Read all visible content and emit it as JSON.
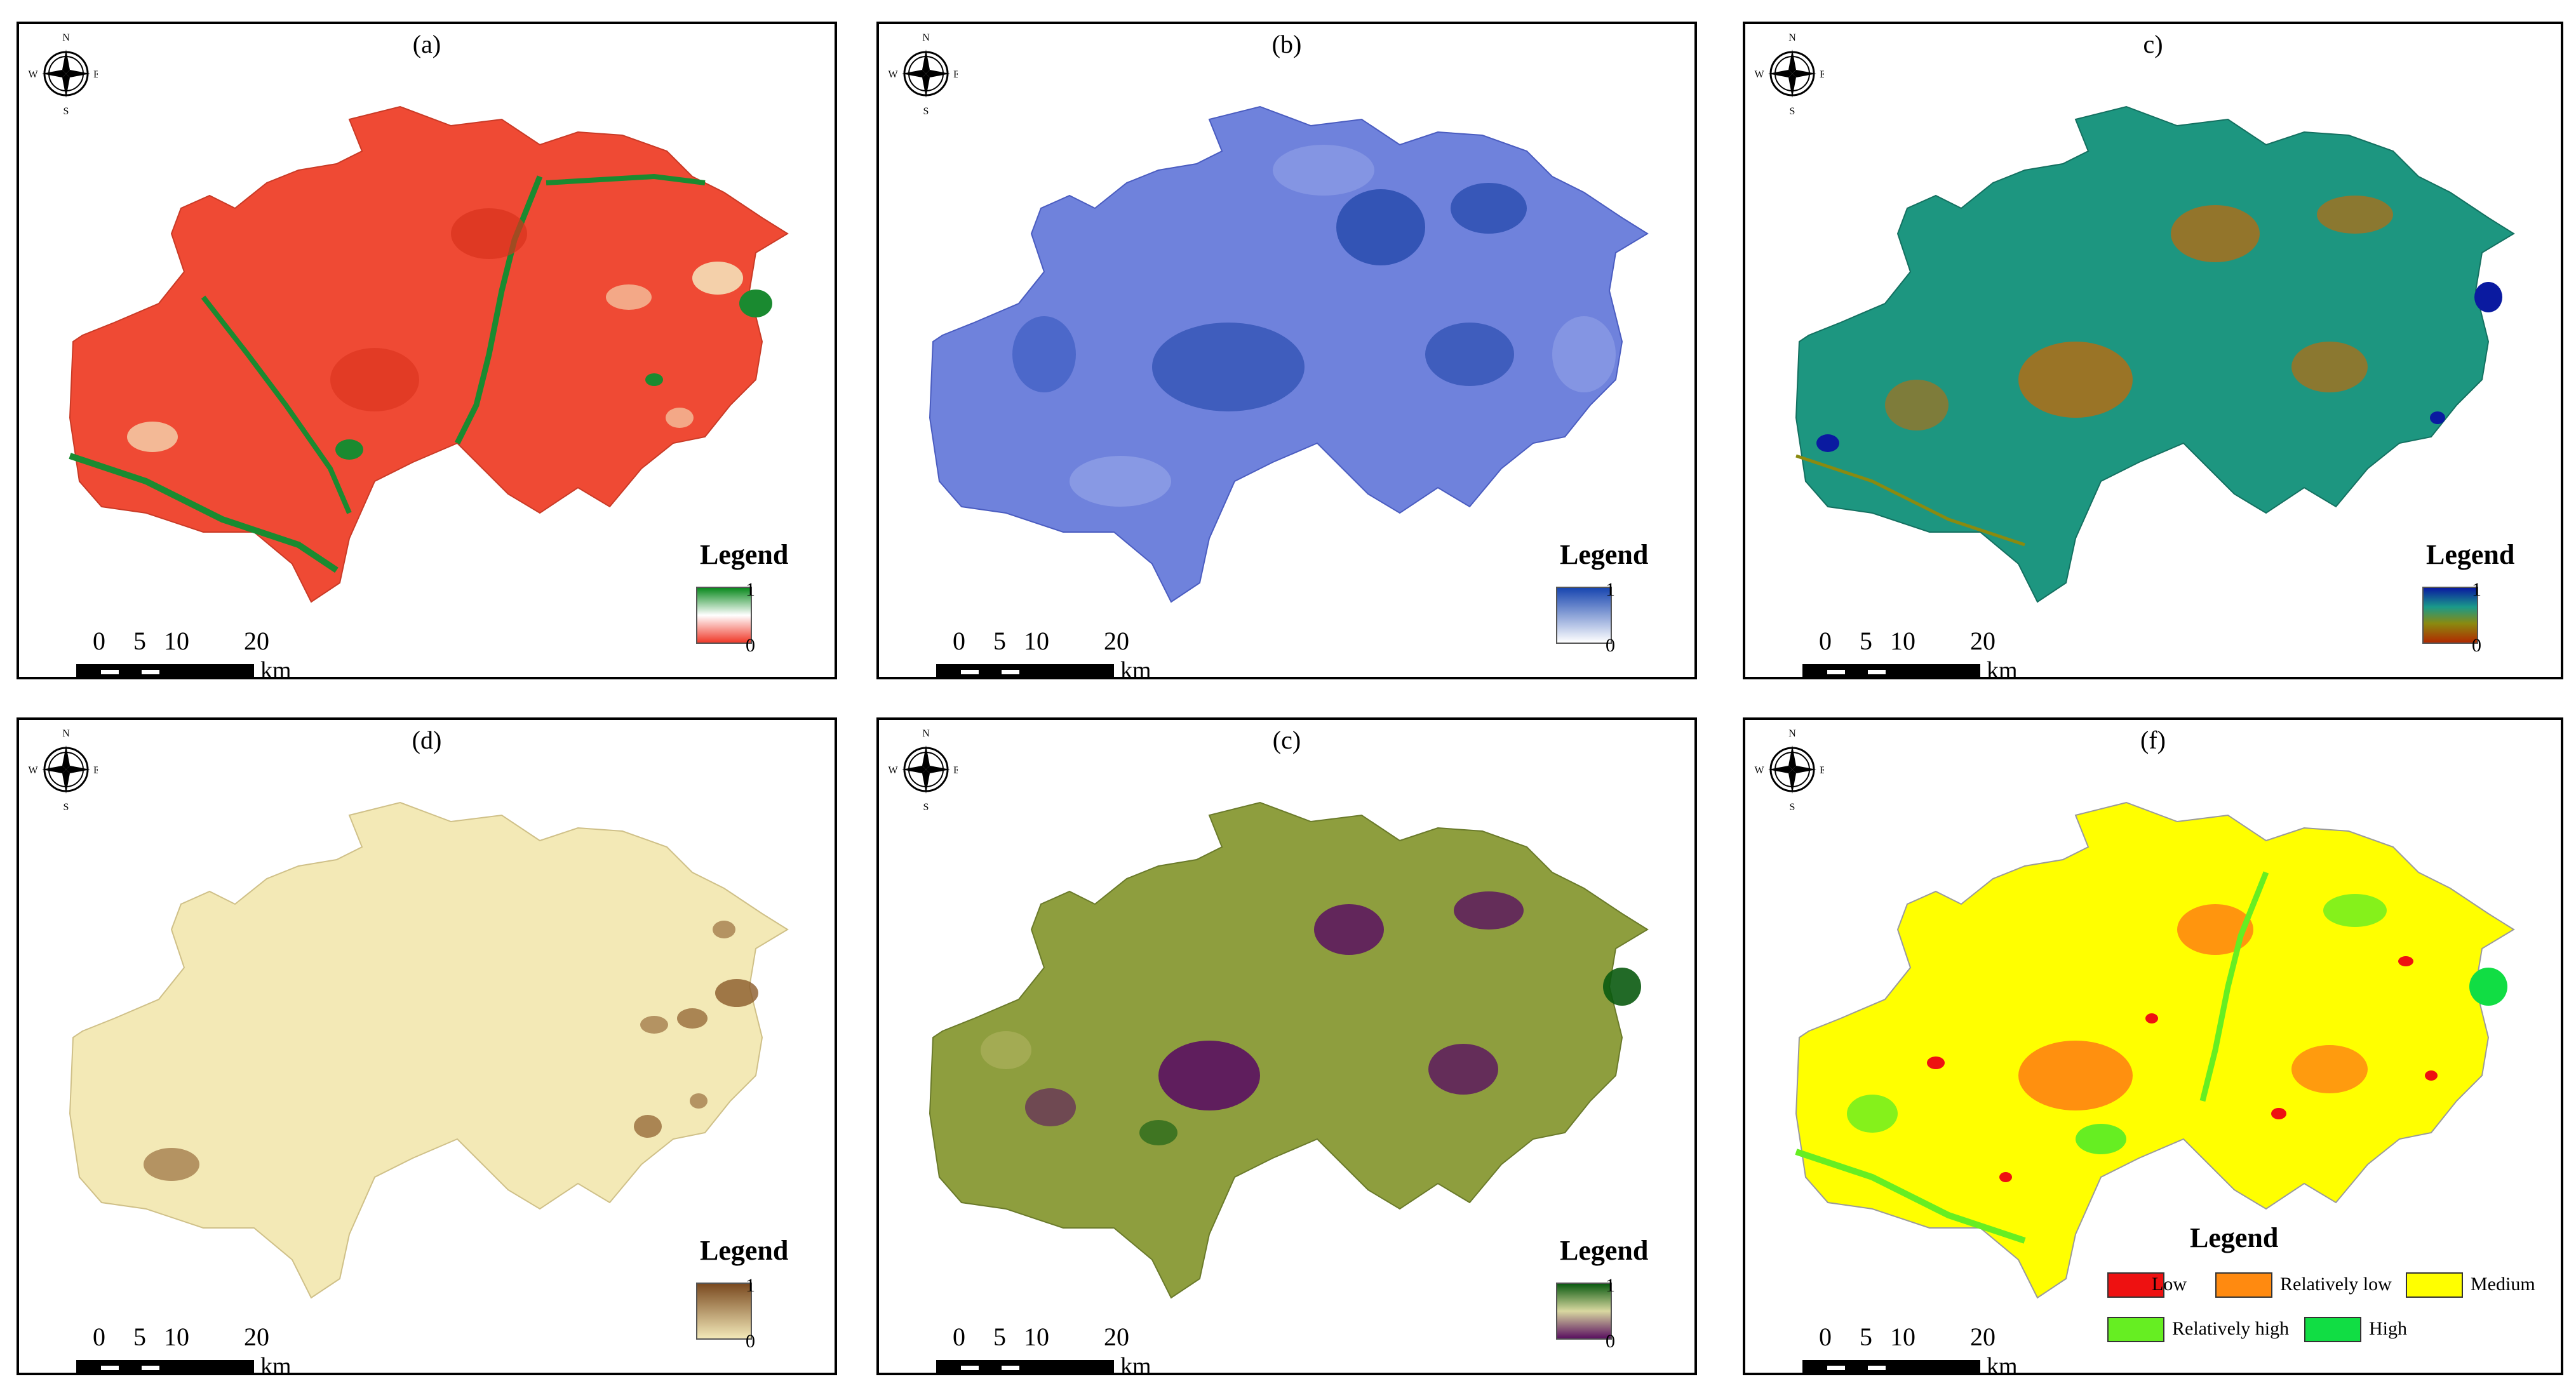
{
  "compass": {
    "n": "N",
    "s": "S",
    "e": "E",
    "w": "W"
  },
  "scale": {
    "ticks": [
      "0",
      "5",
      "10",
      "20"
    ],
    "unit": "km"
  },
  "legend_title": "Legend",
  "panels": [
    {
      "label": "(a)",
      "ramp": {
        "max": "1",
        "min": "0",
        "colors": [
          "#0a8a1e",
          "#ffffff",
          "#f03a2a"
        ]
      }
    },
    {
      "label": "(b)",
      "ramp": {
        "max": "1",
        "min": "0",
        "colors": [
          "#1846b0",
          "#ffffff"
        ]
      }
    },
    {
      "label": "c)",
      "ramp": {
        "max": "1",
        "min": "0",
        "colors": [
          "#0a1aa0",
          "#1a9a8a",
          "#8a8a10",
          "#b02a00"
        ]
      }
    },
    {
      "label": "(d)",
      "ramp": {
        "max": "1",
        "min": "0",
        "colors": [
          "#7a4a20",
          "#f2e8b8"
        ]
      }
    },
    {
      "label": "(c)",
      "ramp": {
        "max": "1",
        "min": "0",
        "colors": [
          "#0a5a10",
          "#d8d8a0",
          "#5a1060"
        ]
      }
    },
    {
      "label": "(f)",
      "categories": [
        {
          "label": "Low",
          "color": "#ee1111"
        },
        {
          "label": "Relatively low",
          "color": "#ff8a10"
        },
        {
          "label": "Medium",
          "color": "#ffff00"
        },
        {
          "label": "Relatively high",
          "color": "#66ee22"
        },
        {
          "label": "High",
          "color": "#11dd44"
        }
      ]
    }
  ]
}
